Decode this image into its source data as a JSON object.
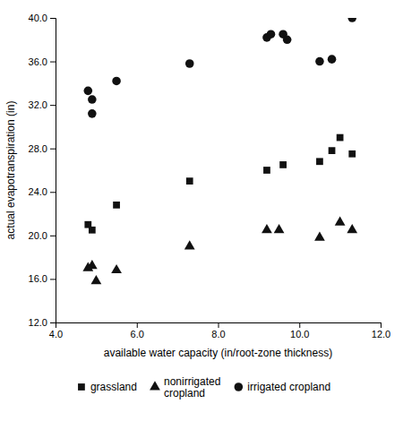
{
  "chart_data": {
    "type": "scatter",
    "xlabel": "available water capacity (in/root-zone thickness)",
    "ylabel": "actual evapotranspiration (in)",
    "series": [
      {
        "name": "grassland",
        "color": "#111111",
        "marker": "square",
        "x": [
          4.8,
          4.9,
          5.5,
          7.3,
          9.2,
          9.6,
          10.5,
          10.8,
          11.0,
          11.3
        ],
        "values": [
          21.0,
          20.5,
          22.8,
          25.0,
          26.0,
          26.5,
          26.8,
          27.8,
          29.0,
          27.5
        ]
      },
      {
        "name": "nonirrigated\ncropland",
        "color": "#111111",
        "marker": "triangle",
        "x": [
          4.8,
          4.9,
          5.0,
          5.5,
          7.3,
          9.2,
          9.5,
          10.5,
          11.0,
          11.3
        ],
        "values": [
          17.0,
          17.2,
          15.8,
          16.8,
          19.0,
          20.5,
          20.5,
          19.8,
          21.2,
          20.5
        ]
      },
      {
        "name": "irrigated cropland",
        "color": "#111111",
        "marker": "circle",
        "x": [
          4.8,
          4.9,
          4.9,
          5.5,
          7.3,
          9.2,
          9.3,
          9.6,
          9.7,
          10.5,
          10.8,
          11.3
        ],
        "values": [
          33.3,
          32.5,
          31.2,
          34.2,
          35.8,
          38.2,
          38.5,
          38.5,
          38.0,
          36.0,
          36.2,
          40.0
        ]
      }
    ],
    "xlim": [
      4.0,
      12.0
    ],
    "ylim": [
      12.0,
      40.0
    ],
    "xticks": [
      {
        "value": 4.0,
        "label": "4.0"
      },
      {
        "value": 6.0,
        "label": "6.0"
      },
      {
        "value": 8.0,
        "label": "8.0"
      },
      {
        "value": 10.0,
        "label": "10.0"
      },
      {
        "value": 12.0,
        "label": "12.0"
      }
    ],
    "yticks": [
      {
        "value": 12.0,
        "label": "12.0"
      },
      {
        "value": 16.0,
        "label": "16.0"
      },
      {
        "value": 20.0,
        "label": "20.0"
      },
      {
        "value": 24.0,
        "label": "24.0"
      },
      {
        "value": 28.0,
        "label": "28.0"
      },
      {
        "value": 32.0,
        "label": "32.0"
      },
      {
        "value": 36.0,
        "label": "36.0"
      },
      {
        "value": 40.0,
        "label": "40.0"
      }
    ],
    "grid": false,
    "legend": "bottom"
  }
}
